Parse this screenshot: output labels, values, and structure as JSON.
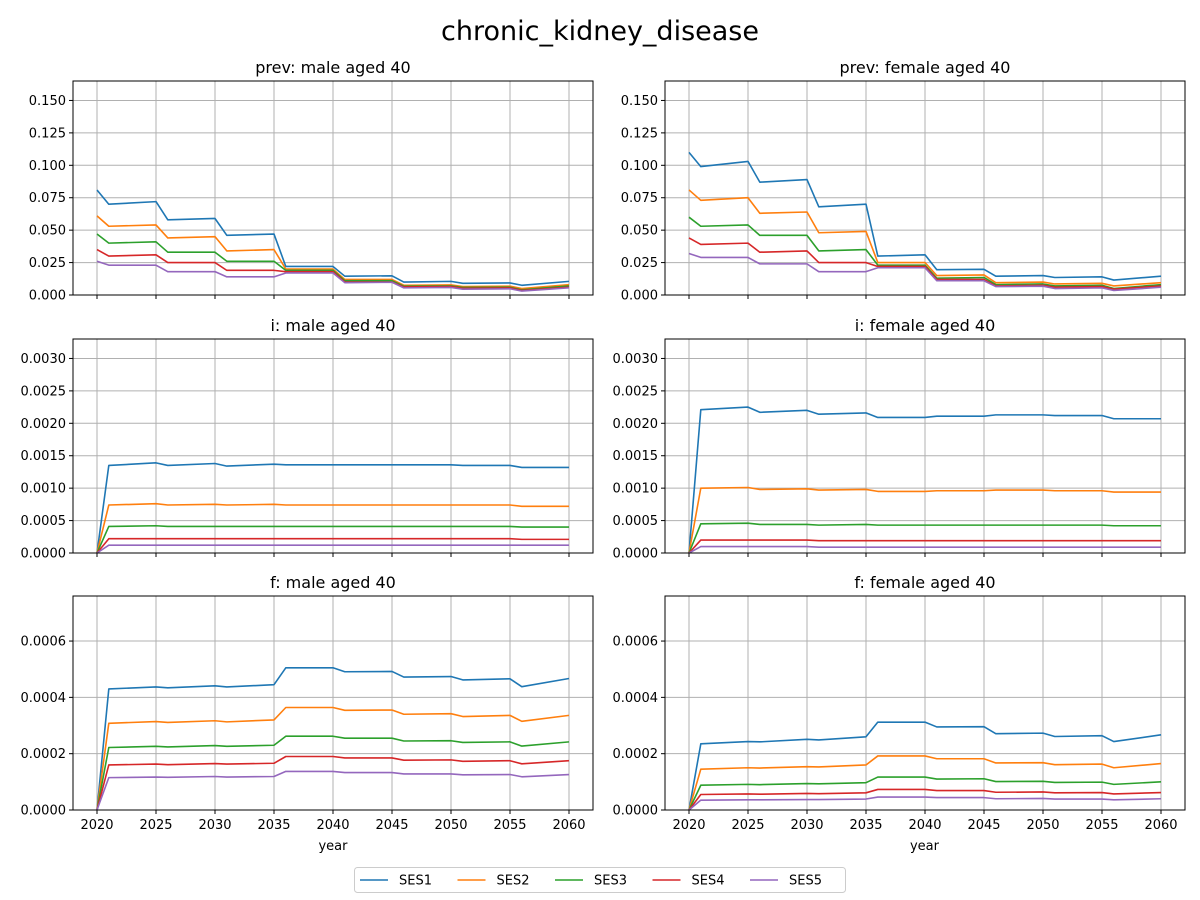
{
  "figure": {
    "title": "chronic_kidney_disease",
    "xlabel": "year"
  },
  "colors": {
    "SES1": "#1f77b4",
    "SES2": "#ff7f0e",
    "SES3": "#2ca02c",
    "SES4": "#d62728",
    "SES5": "#9467bd"
  },
  "legend": {
    "placement": "bottom-center",
    "items": [
      "SES1",
      "SES2",
      "SES3",
      "SES4",
      "SES5"
    ]
  },
  "chart_data": [
    {
      "type": "line",
      "title": "prev: male aged 40",
      "xlim": [
        2020,
        2060
      ],
      "ylim": [
        0,
        0.165
      ],
      "grid": true,
      "xticks": [
        "2020",
        "2025",
        "2030",
        "2035",
        "2040",
        "2045",
        "2050",
        "2055",
        "2060"
      ],
      "yticks": [
        "0.000",
        "0.025",
        "0.050",
        "0.075",
        "0.100",
        "0.125",
        "0.150"
      ],
      "x": [
        2020,
        2021,
        2025,
        2026,
        2030,
        2031,
        2035,
        2036,
        2040,
        2041,
        2045,
        2046,
        2050,
        2051,
        2055,
        2056,
        2060
      ],
      "series": [
        {
          "name": "SES1",
          "values": [
            0.081,
            0.07,
            0.072,
            0.058,
            0.059,
            0.046,
            0.047,
            0.022,
            0.022,
            0.0145,
            0.0148,
            0.01,
            0.0105,
            0.009,
            0.0093,
            0.0075,
            0.0105
          ]
        },
        {
          "name": "SES2",
          "values": [
            0.061,
            0.053,
            0.054,
            0.044,
            0.045,
            0.034,
            0.035,
            0.02,
            0.02,
            0.012,
            0.012,
            0.0075,
            0.0078,
            0.0065,
            0.0068,
            0.005,
            0.008
          ]
        },
        {
          "name": "SES3",
          "values": [
            0.047,
            0.04,
            0.041,
            0.033,
            0.033,
            0.026,
            0.026,
            0.019,
            0.019,
            0.011,
            0.011,
            0.0068,
            0.007,
            0.0058,
            0.006,
            0.004,
            0.007
          ]
        },
        {
          "name": "SES4",
          "values": [
            0.035,
            0.03,
            0.031,
            0.025,
            0.025,
            0.019,
            0.019,
            0.018,
            0.018,
            0.01,
            0.01,
            0.0062,
            0.0065,
            0.0052,
            0.0055,
            0.0035,
            0.006
          ]
        },
        {
          "name": "SES5",
          "values": [
            0.026,
            0.023,
            0.023,
            0.018,
            0.018,
            0.014,
            0.014,
            0.017,
            0.017,
            0.0095,
            0.0098,
            0.0055,
            0.0058,
            0.0045,
            0.0048,
            0.003,
            0.0055
          ]
        }
      ]
    },
    {
      "type": "line",
      "title": "prev: female aged 40",
      "xlim": [
        2020,
        2060
      ],
      "ylim": [
        0,
        0.165
      ],
      "grid": true,
      "xticks": [
        "2020",
        "2025",
        "2030",
        "2035",
        "2040",
        "2045",
        "2050",
        "2055",
        "2060"
      ],
      "yticks": [
        "0.000",
        "0.025",
        "0.050",
        "0.075",
        "0.100",
        "0.125",
        "0.150"
      ],
      "x": [
        2020,
        2021,
        2025,
        2026,
        2030,
        2031,
        2035,
        2036,
        2040,
        2041,
        2045,
        2046,
        2050,
        2051,
        2055,
        2056,
        2060
      ],
      "series": [
        {
          "name": "SES1",
          "values": [
            0.11,
            0.099,
            0.103,
            0.087,
            0.089,
            0.068,
            0.07,
            0.03,
            0.031,
            0.0195,
            0.0198,
            0.0145,
            0.015,
            0.0135,
            0.014,
            0.0115,
            0.0145
          ]
        },
        {
          "name": "SES2",
          "values": [
            0.081,
            0.073,
            0.075,
            0.063,
            0.064,
            0.048,
            0.049,
            0.025,
            0.025,
            0.015,
            0.0155,
            0.0095,
            0.01,
            0.0085,
            0.009,
            0.007,
            0.0095
          ]
        },
        {
          "name": "SES3",
          "values": [
            0.06,
            0.053,
            0.054,
            0.046,
            0.046,
            0.034,
            0.035,
            0.023,
            0.023,
            0.013,
            0.0135,
            0.008,
            0.0085,
            0.007,
            0.0075,
            0.005,
            0.008
          ]
        },
        {
          "name": "SES4",
          "values": [
            0.044,
            0.039,
            0.04,
            0.033,
            0.034,
            0.025,
            0.025,
            0.022,
            0.022,
            0.012,
            0.012,
            0.007,
            0.0075,
            0.006,
            0.0065,
            0.0045,
            0.007
          ]
        },
        {
          "name": "SES5",
          "values": [
            0.032,
            0.029,
            0.029,
            0.024,
            0.024,
            0.018,
            0.018,
            0.021,
            0.021,
            0.011,
            0.011,
            0.0065,
            0.0068,
            0.005,
            0.0055,
            0.0035,
            0.006
          ]
        }
      ]
    },
    {
      "type": "line",
      "title": "i: male aged 40",
      "xlim": [
        2020,
        2060
      ],
      "ylim": [
        0,
        0.0033
      ],
      "grid": true,
      "xticks": [
        "2020",
        "2025",
        "2030",
        "2035",
        "2040",
        "2045",
        "2050",
        "2055",
        "2060"
      ],
      "yticks": [
        "0.0000",
        "0.0005",
        "0.0010",
        "0.0015",
        "0.0020",
        "0.0025",
        "0.0030"
      ],
      "x": [
        2020,
        2021,
        2025,
        2026,
        2030,
        2031,
        2035,
        2036,
        2040,
        2041,
        2045,
        2046,
        2050,
        2051,
        2055,
        2056,
        2060
      ],
      "series": [
        {
          "name": "SES1",
          "values": [
            0.0,
            0.00135,
            0.00139,
            0.00135,
            0.00138,
            0.00134,
            0.00137,
            0.00136,
            0.00136,
            0.00136,
            0.00136,
            0.00136,
            0.00136,
            0.00135,
            0.00135,
            0.00132,
            0.00132
          ]
        },
        {
          "name": "SES2",
          "values": [
            0.0,
            0.00074,
            0.00076,
            0.00074,
            0.00075,
            0.00074,
            0.00075,
            0.00074,
            0.00074,
            0.00074,
            0.00074,
            0.00074,
            0.00074,
            0.00074,
            0.00074,
            0.00072,
            0.00072
          ]
        },
        {
          "name": "SES3",
          "values": [
            0.0,
            0.00041,
            0.00042,
            0.00041,
            0.00041,
            0.00041,
            0.00041,
            0.00041,
            0.00041,
            0.00041,
            0.00041,
            0.00041,
            0.00041,
            0.00041,
            0.00041,
            0.0004,
            0.0004
          ]
        },
        {
          "name": "SES4",
          "values": [
            0.0,
            0.00022,
            0.00022,
            0.00022,
            0.00022,
            0.00022,
            0.00022,
            0.00022,
            0.00022,
            0.00022,
            0.00022,
            0.00022,
            0.00022,
            0.00022,
            0.00022,
            0.00021,
            0.00021
          ]
        },
        {
          "name": "SES5",
          "values": [
            0.0,
            0.00012,
            0.00012,
            0.00012,
            0.00012,
            0.00012,
            0.00012,
            0.00012,
            0.00012,
            0.00012,
            0.00012,
            0.00012,
            0.00012,
            0.00012,
            0.00012,
            0.00012,
            0.00012
          ]
        }
      ]
    },
    {
      "type": "line",
      "title": "i: female aged 40",
      "xlim": [
        2020,
        2060
      ],
      "ylim": [
        0,
        0.0033
      ],
      "grid": true,
      "xticks": [
        "2020",
        "2025",
        "2030",
        "2035",
        "2040",
        "2045",
        "2050",
        "2055",
        "2060"
      ],
      "yticks": [
        "0.0000",
        "0.0005",
        "0.0010",
        "0.0015",
        "0.0020",
        "0.0025",
        "0.0030"
      ],
      "x": [
        2020,
        2021,
        2025,
        2026,
        2030,
        2031,
        2035,
        2036,
        2040,
        2041,
        2045,
        2046,
        2050,
        2051,
        2055,
        2056,
        2060
      ],
      "series": [
        {
          "name": "SES1",
          "values": [
            0.0,
            0.00221,
            0.00225,
            0.00217,
            0.0022,
            0.00214,
            0.00216,
            0.00209,
            0.00209,
            0.00211,
            0.00211,
            0.00213,
            0.00213,
            0.00212,
            0.00212,
            0.00207,
            0.00207
          ]
        },
        {
          "name": "SES2",
          "values": [
            0.0,
            0.001,
            0.00101,
            0.00098,
            0.00099,
            0.00097,
            0.00098,
            0.00095,
            0.00095,
            0.00096,
            0.00096,
            0.00097,
            0.00097,
            0.00096,
            0.00096,
            0.00094,
            0.00094
          ]
        },
        {
          "name": "SES3",
          "values": [
            0.0,
            0.00045,
            0.00046,
            0.00044,
            0.00044,
            0.00043,
            0.00044,
            0.00043,
            0.00043,
            0.00043,
            0.00043,
            0.00043,
            0.00043,
            0.00043,
            0.00043,
            0.00042,
            0.00042
          ]
        },
        {
          "name": "SES4",
          "values": [
            0.0,
            0.0002,
            0.0002,
            0.0002,
            0.0002,
            0.00019,
            0.00019,
            0.00019,
            0.00019,
            0.00019,
            0.00019,
            0.00019,
            0.00019,
            0.00019,
            0.00019,
            0.00019,
            0.00019
          ]
        },
        {
          "name": "SES5",
          "values": [
            0.0,
            0.0001,
            0.0001,
            0.0001,
            0.0001,
            9e-05,
            9e-05,
            9e-05,
            9e-05,
            9e-05,
            9e-05,
            9e-05,
            9e-05,
            9e-05,
            9e-05,
            9e-05,
            9e-05
          ]
        }
      ]
    },
    {
      "type": "line",
      "title": "f: male aged 40",
      "xlim": [
        2020,
        2060
      ],
      "ylim": [
        0,
        0.00076
      ],
      "grid": true,
      "xticks": [
        "2020",
        "2025",
        "2030",
        "2035",
        "2040",
        "2045",
        "2050",
        "2055",
        "2060"
      ],
      "yticks": [
        "0.0000",
        "0.0002",
        "0.0004",
        "0.0006"
      ],
      "x": [
        2020,
        2021,
        2025,
        2026,
        2030,
        2031,
        2035,
        2036,
        2040,
        2041,
        2045,
        2046,
        2050,
        2051,
        2055,
        2056,
        2060
      ],
      "series": [
        {
          "name": "SES1",
          "values": [
            0.0,
            0.00043,
            0.000437,
            0.000434,
            0.000441,
            0.000437,
            0.000445,
            0.000505,
            0.000505,
            0.000491,
            0.000492,
            0.000472,
            0.000474,
            0.000462,
            0.000466,
            0.000438,
            0.000467
          ]
        },
        {
          "name": "SES2",
          "values": [
            0.0,
            0.000308,
            0.000314,
            0.000311,
            0.000317,
            0.000313,
            0.00032,
            0.000364,
            0.000364,
            0.000354,
            0.000355,
            0.00034,
            0.000342,
            0.000332,
            0.000336,
            0.000315,
            0.000336
          ]
        },
        {
          "name": "SES3",
          "values": [
            0.0,
            0.000222,
            0.000226,
            0.000224,
            0.000229,
            0.000226,
            0.00023,
            0.000262,
            0.000262,
            0.000255,
            0.000255,
            0.000245,
            0.000246,
            0.00024,
            0.000242,
            0.000227,
            0.000242
          ]
        },
        {
          "name": "SES4",
          "values": [
            0.0,
            0.00016,
            0.000163,
            0.000161,
            0.000165,
            0.000163,
            0.000166,
            0.00019,
            0.00019,
            0.000185,
            0.000185,
            0.000177,
            0.000178,
            0.000173,
            0.000175,
            0.000164,
            0.000175
          ]
        },
        {
          "name": "SES5",
          "values": [
            0.0,
            0.000115,
            0.000117,
            0.000116,
            0.000119,
            0.000117,
            0.000119,
            0.000137,
            0.000137,
            0.000133,
            0.000133,
            0.000128,
            0.000128,
            0.000125,
            0.000126,
            0.000118,
            0.000126
          ]
        }
      ]
    },
    {
      "type": "line",
      "title": "f: female aged 40",
      "xlim": [
        2020,
        2060
      ],
      "ylim": [
        0,
        0.00076
      ],
      "grid": true,
      "xticks": [
        "2020",
        "2025",
        "2030",
        "2035",
        "2040",
        "2045",
        "2050",
        "2055",
        "2060"
      ],
      "yticks": [
        "0.0000",
        "0.0002",
        "0.0004",
        "0.0006"
      ],
      "x": [
        2020,
        2021,
        2025,
        2026,
        2030,
        2031,
        2035,
        2036,
        2040,
        2041,
        2045,
        2046,
        2050,
        2051,
        2055,
        2056,
        2060
      ],
      "series": [
        {
          "name": "SES1",
          "values": [
            0.0,
            0.000235,
            0.000243,
            0.000242,
            0.000251,
            0.000249,
            0.00026,
            0.000312,
            0.000312,
            0.000295,
            0.000296,
            0.000271,
            0.000273,
            0.000261,
            0.000264,
            0.000243,
            0.000267
          ]
        },
        {
          "name": "SES2",
          "values": [
            0.0,
            0.000145,
            0.00015,
            0.000149,
            0.000154,
            0.000153,
            0.00016,
            0.000192,
            0.000192,
            0.000182,
            0.000182,
            0.000167,
            0.000168,
            0.000161,
            0.000163,
            0.00015,
            0.000165
          ]
        },
        {
          "name": "SES3",
          "values": [
            0.0,
            8.8e-05,
            9.1e-05,
            9e-05,
            9.4e-05,
            9.3e-05,
            9.7e-05,
            0.000117,
            0.000117,
            0.00011,
            0.000111,
            0.000101,
            0.000102,
            9.8e-05,
            9.9e-05,
            9.1e-05,
            0.0001
          ]
        },
        {
          "name": "SES4",
          "values": [
            0.0,
            5.5e-05,
            5.7e-05,
            5.6e-05,
            5.9e-05,
            5.8e-05,
            6.1e-05,
            7.3e-05,
            7.3e-05,
            6.9e-05,
            6.9e-05,
            6.3e-05,
            6.4e-05,
            6.1e-05,
            6.2e-05,
            5.7e-05,
            6.2e-05
          ]
        },
        {
          "name": "SES5",
          "values": [
            0.0,
            3.5e-05,
            3.6e-05,
            3.6e-05,
            3.7e-05,
            3.7e-05,
            3.9e-05,
            4.6e-05,
            4.6e-05,
            4.4e-05,
            4.4e-05,
            4e-05,
            4.1e-05,
            3.9e-05,
            3.9e-05,
            3.6e-05,
            4e-05
          ]
        }
      ]
    }
  ]
}
